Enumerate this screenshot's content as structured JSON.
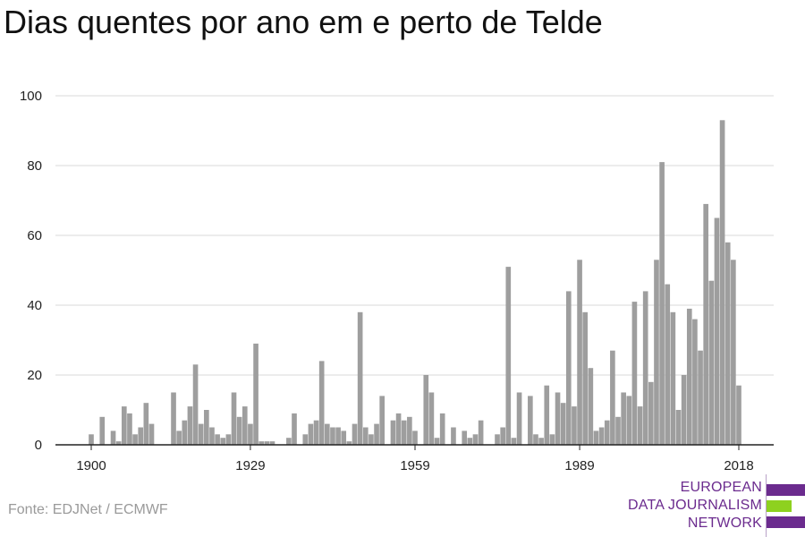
{
  "chart_data": {
    "type": "bar",
    "title": "Dias quentes por ano em e perto de Telde",
    "xlabel": "",
    "ylabel": "",
    "ylim": [
      0,
      100
    ],
    "yticks": [
      0,
      20,
      40,
      60,
      80,
      100
    ],
    "xticks": [
      1900,
      1929,
      1959,
      1989,
      2018
    ],
    "x": [
      1900,
      1901,
      1902,
      1903,
      1904,
      1905,
      1906,
      1907,
      1908,
      1909,
      1910,
      1911,
      1912,
      1913,
      1914,
      1915,
      1916,
      1917,
      1918,
      1919,
      1920,
      1921,
      1922,
      1923,
      1924,
      1925,
      1926,
      1927,
      1928,
      1929,
      1930,
      1931,
      1932,
      1933,
      1934,
      1935,
      1936,
      1937,
      1938,
      1939,
      1940,
      1941,
      1942,
      1943,
      1944,
      1945,
      1946,
      1947,
      1948,
      1949,
      1950,
      1951,
      1952,
      1953,
      1954,
      1955,
      1956,
      1957,
      1958,
      1959,
      1960,
      1961,
      1962,
      1963,
      1964,
      1965,
      1966,
      1967,
      1968,
      1969,
      1970,
      1971,
      1972,
      1973,
      1974,
      1975,
      1976,
      1977,
      1978,
      1979,
      1980,
      1981,
      1982,
      1983,
      1984,
      1985,
      1986,
      1987,
      1988,
      1989,
      1990,
      1991,
      1992,
      1993,
      1994,
      1995,
      1996,
      1997,
      1998,
      1999,
      2000,
      2001,
      2002,
      2003,
      2004,
      2005,
      2006,
      2007,
      2008,
      2009,
      2010,
      2011,
      2012,
      2013,
      2014,
      2015,
      2016,
      2017,
      2018
    ],
    "values": [
      3,
      0,
      8,
      0,
      4,
      1,
      11,
      9,
      3,
      5,
      12,
      6,
      0,
      0,
      0,
      15,
      4,
      7,
      11,
      23,
      6,
      10,
      5,
      3,
      2,
      3,
      15,
      8,
      11,
      6,
      29,
      1,
      1,
      1,
      0,
      0,
      2,
      9,
      0,
      3,
      6,
      7,
      24,
      6,
      5,
      5,
      4,
      1,
      6,
      38,
      5,
      3,
      6,
      14,
      0,
      7,
      9,
      7,
      8,
      4,
      0,
      20,
      15,
      2,
      9,
      0,
      5,
      0,
      4,
      2,
      3,
      7,
      0,
      0,
      3,
      5,
      51,
      2,
      15,
      0,
      14,
      3,
      2,
      17,
      3,
      15,
      12,
      44,
      11,
      53,
      38,
      22,
      4,
      5,
      7,
      27,
      8,
      15,
      14,
      41,
      11,
      44,
      18,
      53,
      81,
      46,
      38,
      10,
      20,
      39,
      36,
      27,
      69,
      47,
      65,
      93,
      58,
      53,
      17
    ],
    "color": "#9e9e9e",
    "grid": true
  },
  "source": "Fonte: EDJNet / ECMWF",
  "logo": {
    "lines": [
      "EUROPEAN",
      "DATA JOURNALISM",
      "NETWORK"
    ],
    "text_color": "#6b2b8e",
    "bar_colors": [
      "#6b2b8e",
      "#8ed11f",
      "#6b2b8e"
    ]
  }
}
